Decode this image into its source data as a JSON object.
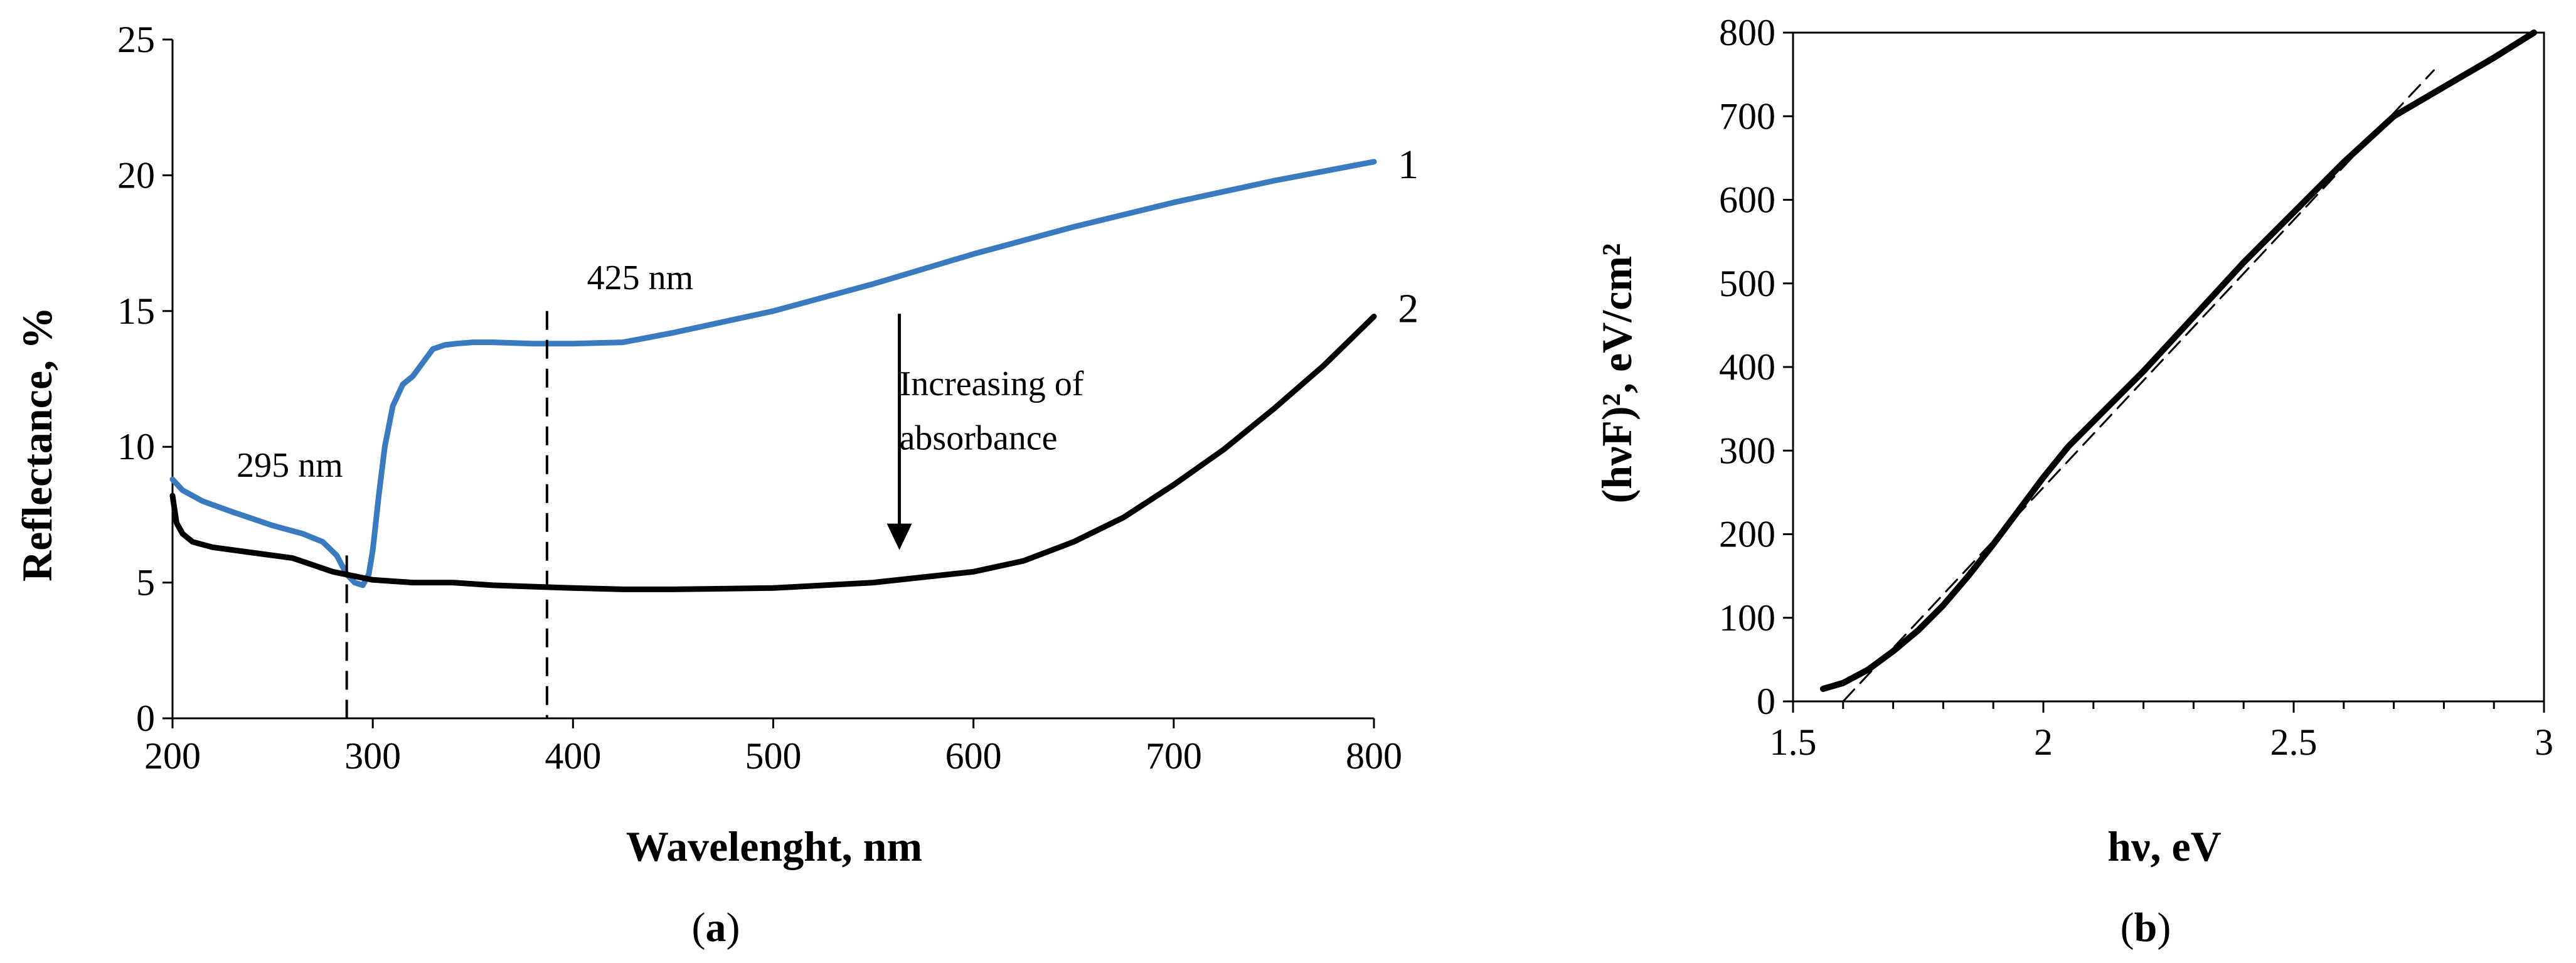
{
  "chart_data": [
    {
      "panel": "a",
      "type": "line",
      "caption": {
        "open": "(",
        "letter": "a",
        "close": ")"
      },
      "xlabel": "Wavelenght, nm",
      "ylabel": "Reflectance, %",
      "xlim": [
        200,
        800
      ],
      "ylim": [
        0,
        25
      ],
      "xticks": [
        200,
        300,
        400,
        500,
        600,
        700,
        800
      ],
      "yticks": [
        0,
        5,
        10,
        15,
        20,
        25
      ],
      "grid": false,
      "series": [
        {
          "name": "1",
          "color": "#3a7bbf",
          "x": [
            200,
            205,
            215,
            230,
            250,
            265,
            275,
            282,
            287,
            291,
            295,
            298,
            300,
            303,
            306,
            310,
            315,
            320,
            325,
            330,
            336,
            342,
            350,
            360,
            380,
            400,
            425,
            450,
            500,
            550,
            600,
            650,
            700,
            750,
            800
          ],
          "y": [
            8.8,
            8.4,
            8.0,
            7.6,
            7.1,
            6.8,
            6.5,
            6.0,
            5.3,
            5.0,
            4.9,
            5.3,
            6.2,
            8.2,
            10.0,
            11.5,
            12.3,
            12.6,
            13.1,
            13.6,
            13.75,
            13.8,
            13.85,
            13.85,
            13.8,
            13.8,
            13.85,
            14.2,
            15.0,
            16.0,
            17.1,
            18.1,
            19.0,
            19.8,
            20.5
          ]
        },
        {
          "name": "2",
          "color": "#000000",
          "x": [
            200,
            202,
            205,
            210,
            220,
            240,
            260,
            280,
            300,
            320,
            340,
            360,
            380,
            400,
            425,
            450,
            500,
            550,
            600,
            625,
            650,
            675,
            700,
            725,
            750,
            775,
            800
          ],
          "y": [
            8.2,
            7.2,
            6.8,
            6.5,
            6.3,
            6.1,
            5.9,
            5.4,
            5.1,
            5.0,
            5.0,
            4.9,
            4.85,
            4.8,
            4.75,
            4.75,
            4.8,
            5.0,
            5.4,
            5.8,
            6.5,
            7.4,
            8.6,
            9.9,
            11.4,
            13.0,
            14.8
          ]
        }
      ],
      "vlines": [
        {
          "x": 287,
          "y_top": 6.0
        },
        {
          "x": 387,
          "y_top": 15.0
        }
      ],
      "annotations": [
        {
          "text": "295 nm",
          "x": 232,
          "y": 8.9
        },
        {
          "text": "425 nm",
          "x": 407,
          "y": 15.8
        },
        {
          "text": "Increasing of",
          "x": 563,
          "y": 11.9
        },
        {
          "text": "absorbance",
          "x": 563,
          "y": 9.9
        }
      ],
      "arrow": {
        "x": 563,
        "from_y": 14.9,
        "to_y": 6.2
      },
      "curve_labels": [
        {
          "text": "1",
          "x": 812,
          "y": 20.4
        },
        {
          "text": "2",
          "x": 812,
          "y": 15.1
        }
      ]
    },
    {
      "panel": "b",
      "type": "line",
      "caption": {
        "open": "(",
        "letter": "b",
        "close": ")"
      },
      "xlabel": "hν, eV",
      "ylabel": "(hνF)², eV/cm²",
      "xlim": [
        1.5,
        3
      ],
      "ylim": [
        0,
        800
      ],
      "xticks": [
        1.5,
        2,
        2.5,
        3
      ],
      "xtick_labels": [
        "1.5",
        "2",
        "2.5",
        "3"
      ],
      "yticks": [
        0,
        100,
        200,
        300,
        400,
        500,
        600,
        700,
        800
      ],
      "grid": false,
      "series": [
        {
          "name": "(hνF)²",
          "color": "#000000",
          "x": [
            1.56,
            1.6,
            1.65,
            1.7,
            1.75,
            1.8,
            1.85,
            1.9,
            1.95,
            2.0,
            2.05,
            2.1,
            2.2,
            2.3,
            2.4,
            2.5,
            2.6,
            2.7,
            2.8,
            2.9,
            2.98
          ],
          "y": [
            15,
            22,
            38,
            60,
            85,
            115,
            150,
            188,
            228,
            268,
            305,
            335,
            395,
            460,
            525,
            585,
            645,
            700,
            735,
            770,
            800
          ]
        },
        {
          "name": "linear fit",
          "color": "#000000",
          "dashed": true,
          "x": [
            1.6,
            2.78
          ],
          "y": [
            0,
            755
          ]
        }
      ]
    }
  ]
}
